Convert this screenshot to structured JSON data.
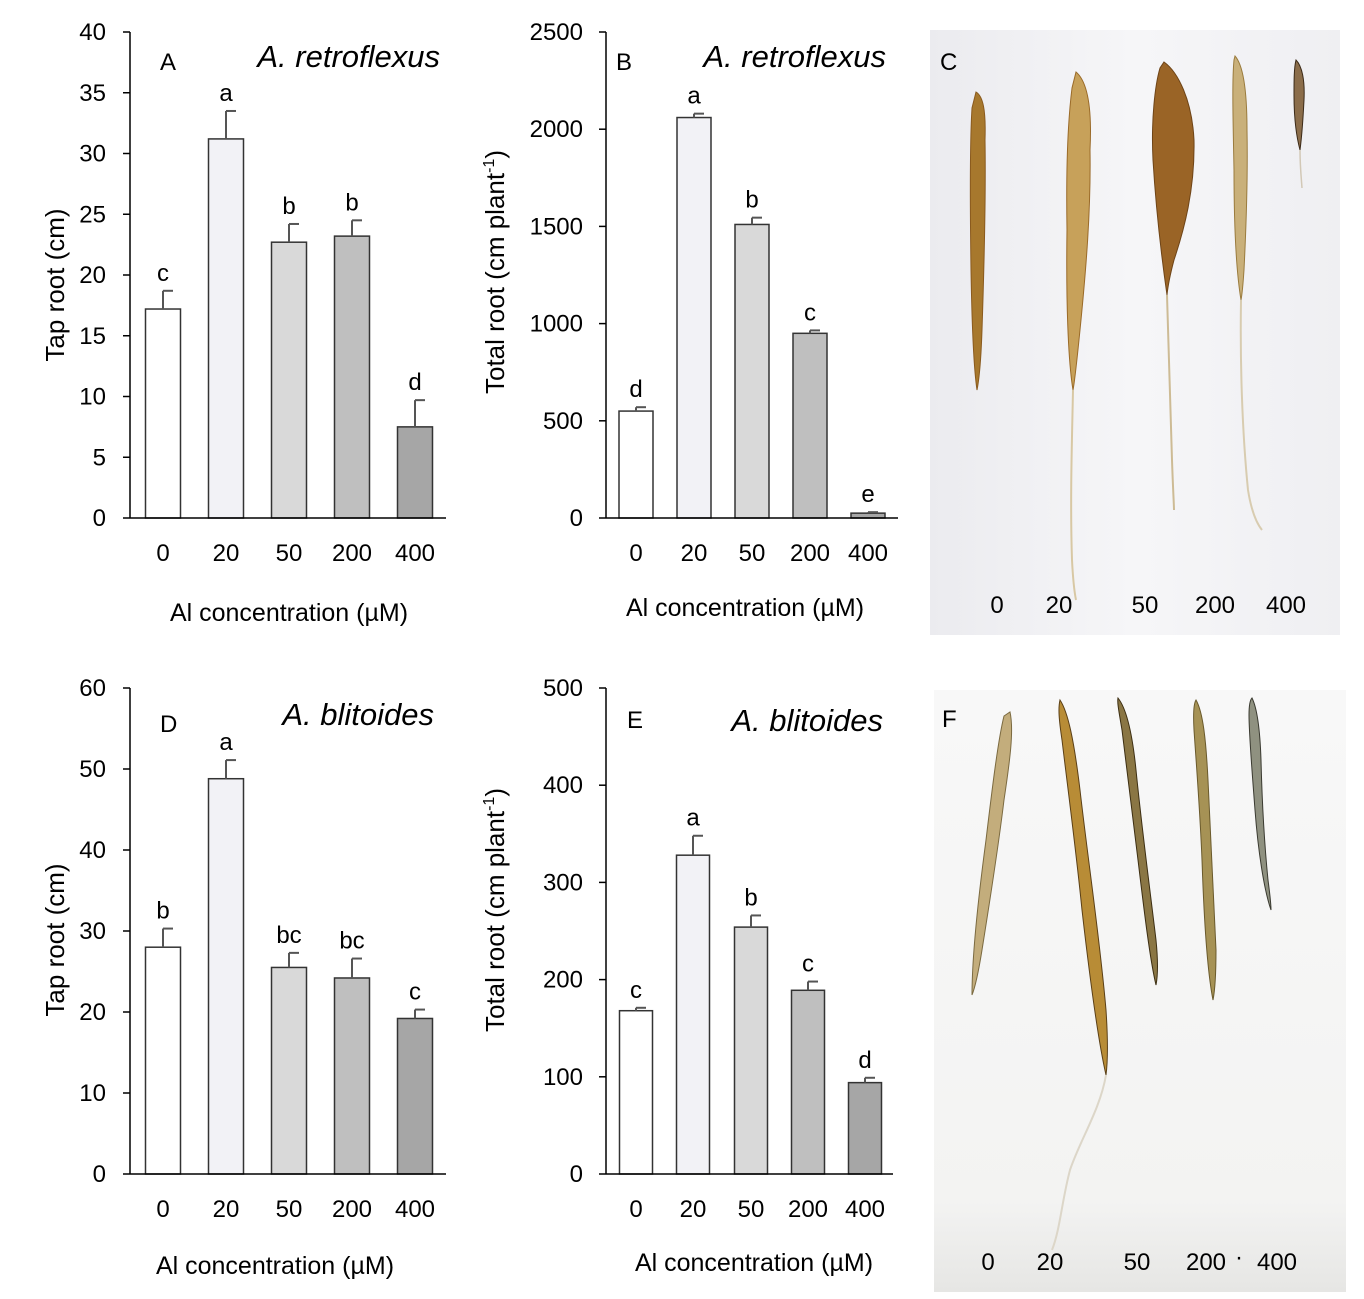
{
  "chart_data": [
    {
      "type": "bar",
      "panel_letter": "A",
      "species": "A. retroflexus",
      "categories": [
        "0",
        "20",
        "50",
        "200",
        "400"
      ],
      "values": [
        17.2,
        31.2,
        22.7,
        23.2,
        7.5
      ],
      "errors": [
        1.5,
        2.3,
        1.5,
        1.3,
        2.2
      ],
      "significance": [
        "c",
        "a",
        "b",
        "b",
        "d"
      ],
      "colors": [
        "#ffffff",
        "#f2f2f6",
        "#d9d9d9",
        "#bfbfbf",
        "#a6a6a6"
      ],
      "ylabel": "Tap root (cm)",
      "xlabel": "Al concentration (µM)",
      "ylim": [
        0,
        40
      ],
      "yticks": [
        "0",
        "5",
        "10",
        "15",
        "20",
        "25",
        "30",
        "35",
        "40"
      ]
    },
    {
      "type": "bar",
      "panel_letter": "B",
      "species": "A. retroflexus",
      "categories": [
        "0",
        "20",
        "50",
        "200",
        "400"
      ],
      "values": [
        550,
        2060,
        1510,
        950,
        25
      ],
      "errors": [
        20,
        20,
        35,
        15,
        5
      ],
      "significance": [
        "d",
        "a",
        "b",
        "c",
        "e"
      ],
      "colors": [
        "#ffffff",
        "#f2f2f6",
        "#d9d9d9",
        "#bfbfbf",
        "#a6a6a6"
      ],
      "ylabel": "Total root (cm plant",
      "ylabel_sup": "-1",
      "ylabel_end": ")",
      "xlabel": "Al concentration (µM)",
      "ylim": [
        0,
        2500
      ],
      "yticks": [
        "0",
        "500",
        "1000",
        "1500",
        "2000",
        "2500"
      ]
    },
    {
      "type": "bar",
      "panel_letter": "D",
      "species": "A. blitoides",
      "categories": [
        "0",
        "20",
        "50",
        "200",
        "400"
      ],
      "values": [
        28,
        48.8,
        25.5,
        24.2,
        19.2
      ],
      "errors": [
        2.3,
        2.3,
        1.8,
        2.4,
        1.1
      ],
      "significance": [
        "b",
        "a",
        "bc",
        "bc",
        "c"
      ],
      "colors": [
        "#ffffff",
        "#f2f2f6",
        "#d9d9d9",
        "#bfbfbf",
        "#a6a6a6"
      ],
      "ylabel": "Tap root (cm)",
      "xlabel": "Al concentration (µM)",
      "ylim": [
        0,
        60
      ],
      "yticks": [
        "0",
        "10",
        "20",
        "30",
        "40",
        "50",
        "60"
      ]
    },
    {
      "type": "bar",
      "panel_letter": "E",
      "species": "A. blitoides",
      "categories": [
        "0",
        "20",
        "50",
        "200",
        "400"
      ],
      "values": [
        168,
        328,
        254,
        189,
        94
      ],
      "errors": [
        3,
        20,
        12,
        9,
        5
      ],
      "significance": [
        "c",
        "a",
        "b",
        "c",
        "d"
      ],
      "colors": [
        "#ffffff",
        "#f2f2f6",
        "#d9d9d9",
        "#bfbfbf",
        "#a6a6a6"
      ],
      "ylabel": "Total root (cm plant",
      "ylabel_sup": "-1",
      "ylabel_end": ")",
      "xlabel": "Al concentration (µM)",
      "ylim": [
        0,
        500
      ],
      "yticks": [
        "0",
        "100",
        "200",
        "300",
        "400",
        "500"
      ]
    }
  ],
  "photos": [
    {
      "panel_letter": "C",
      "sample_labels": [
        "0",
        "20",
        "50",
        "200",
        "400"
      ],
      "background_color": "#f0f0f3",
      "root_colors": [
        "#a7782d",
        "#c7a15a",
        "#9a6426",
        "#c9b07a",
        "#8b6d4a"
      ]
    },
    {
      "panel_letter": "F",
      "sample_labels": [
        "0",
        "20",
        "50",
        "200",
        "400"
      ],
      "separator": "·",
      "background_color": "#f2f2f2",
      "root_colors": [
        "#b8a070",
        "#b88c36",
        "#7f6a3b",
        "#a69255",
        "#8a8a7a"
      ]
    }
  ]
}
